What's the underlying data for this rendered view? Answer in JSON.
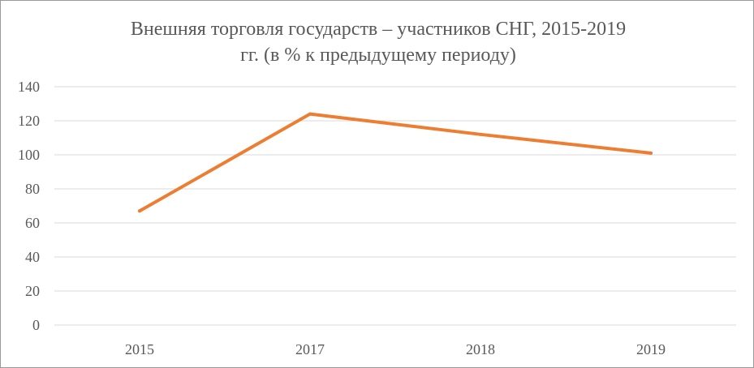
{
  "chart_data": {
    "type": "line",
    "title_lines": [
      "Внешняя торговля государств – участников СНГ, 2015-2019",
      "гг. (в % к предыдущему периоду)"
    ],
    "categories": [
      "2015",
      "2017",
      "2018",
      "2019"
    ],
    "series": [
      {
        "values": [
          67,
          124,
          112,
          101
        ],
        "color": "#ED7D31"
      }
    ],
    "y_ticks": [
      "0",
      "20",
      "40",
      "60",
      "80",
      "100",
      "120",
      "140"
    ],
    "ylim": [
      0,
      140
    ],
    "xlabel": "",
    "ylabel": "",
    "grid": true,
    "legend": false,
    "gridline_color": "#d9d9d9"
  }
}
